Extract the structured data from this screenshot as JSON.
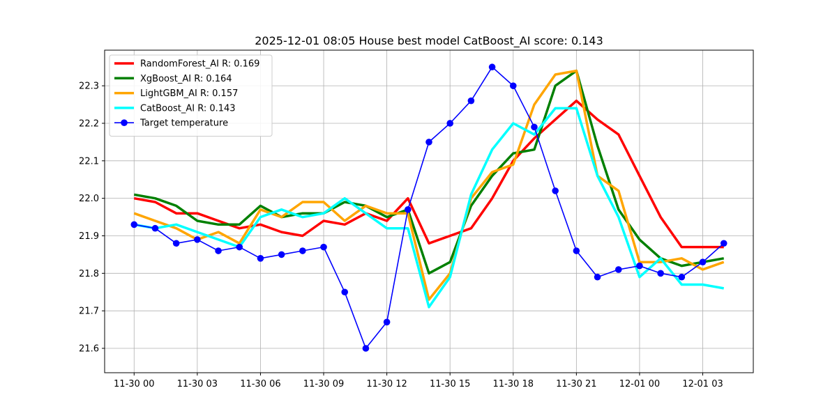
{
  "chart_data": {
    "type": "line",
    "title": "2025-12-01 08:05 House best model CatBoost_AI score: 0.143",
    "xlabel": "",
    "ylabel": "",
    "x": [
      "11-30 00",
      "11-30 01",
      "11-30 02",
      "11-30 03",
      "11-30 04",
      "11-30 05",
      "11-30 06",
      "11-30 07",
      "11-30 08",
      "11-30 09",
      "11-30 10",
      "11-30 11",
      "11-30 12",
      "11-30 13",
      "11-30 14",
      "11-30 15",
      "11-30 16",
      "11-30 17",
      "11-30 18",
      "11-30 19",
      "11-30 20",
      "11-30 21",
      "11-30 22",
      "11-30 23",
      "12-01 00",
      "12-01 01",
      "12-01 02",
      "12-01 03",
      "12-01 04"
    ],
    "x_hours": [
      0,
      1,
      2,
      3,
      4,
      5,
      6,
      7,
      8,
      9,
      10,
      11,
      12,
      13,
      14,
      15,
      16,
      17,
      18,
      19,
      20,
      21,
      22,
      23,
      24,
      25,
      26,
      27,
      28
    ],
    "xlim_hours": [
      -1.4,
      29.4
    ],
    "ylim": [
      21.535,
      22.395
    ],
    "x_ticks": [
      {
        "hour": 0,
        "label": "11-30 00"
      },
      {
        "hour": 3,
        "label": "11-30 03"
      },
      {
        "hour": 6,
        "label": "11-30 06"
      },
      {
        "hour": 9,
        "label": "11-30 09"
      },
      {
        "hour": 12,
        "label": "11-30 12"
      },
      {
        "hour": 15,
        "label": "11-30 15"
      },
      {
        "hour": 18,
        "label": "11-30 18"
      },
      {
        "hour": 21,
        "label": "11-30 21"
      },
      {
        "hour": 24,
        "label": "12-01 00"
      },
      {
        "hour": 27,
        "label": "12-01 03"
      }
    ],
    "y_ticks": [
      {
        "value": 21.6,
        "label": "21.6"
      },
      {
        "value": 21.7,
        "label": "21.7"
      },
      {
        "value": 21.8,
        "label": "21.8"
      },
      {
        "value": 21.9,
        "label": "21.9"
      },
      {
        "value": 22.0,
        "label": "22.0"
      },
      {
        "value": 22.1,
        "label": "22.1"
      },
      {
        "value": 22.2,
        "label": "22.2"
      },
      {
        "value": 22.3,
        "label": "22.3"
      }
    ],
    "grid": true,
    "legend_position": "top-left",
    "series": [
      {
        "name": "RandomForest_AI R: 0.169",
        "color": "#ff0000",
        "marker": false,
        "values": [
          22.0,
          21.99,
          21.96,
          21.96,
          21.94,
          21.92,
          21.93,
          21.91,
          21.9,
          21.94,
          21.93,
          21.96,
          21.94,
          22.0,
          21.88,
          21.9,
          21.92,
          22.0,
          22.1,
          22.16,
          22.21,
          22.26,
          22.21,
          22.17,
          22.06,
          21.95,
          21.87,
          21.87,
          21.87
        ]
      },
      {
        "name": "XgBoost_AI R: 0.164",
        "color": "#008000",
        "marker": false,
        "values": [
          22.01,
          22.0,
          21.98,
          21.94,
          21.93,
          21.93,
          21.98,
          21.95,
          21.96,
          21.96,
          21.99,
          21.98,
          21.95,
          21.97,
          21.8,
          21.83,
          21.98,
          22.06,
          22.12,
          22.13,
          22.3,
          22.34,
          22.14,
          21.97,
          21.89,
          21.84,
          21.82,
          21.83,
          21.84
        ]
      },
      {
        "name": "LightGBM_AI R: 0.157",
        "color": "#ffa500",
        "marker": false,
        "values": [
          21.96,
          21.94,
          21.92,
          21.89,
          21.91,
          21.88,
          21.97,
          21.95,
          21.99,
          21.99,
          21.94,
          21.98,
          21.96,
          21.96,
          21.73,
          21.8,
          22.0,
          22.07,
          22.09,
          22.25,
          22.33,
          22.34,
          22.06,
          22.02,
          21.83,
          21.83,
          21.84,
          21.81,
          21.83
        ]
      },
      {
        "name": "CatBoost_AI R: 0.143",
        "color": "#00ffff",
        "marker": false,
        "values": [
          21.93,
          21.92,
          21.93,
          21.91,
          21.89,
          21.87,
          21.95,
          21.97,
          21.95,
          21.96,
          22.0,
          21.96,
          21.92,
          21.92,
          21.71,
          21.79,
          22.01,
          22.13,
          22.2,
          22.17,
          22.24,
          22.24,
          22.06,
          21.95,
          21.79,
          21.84,
          21.77,
          21.77,
          21.76
        ]
      },
      {
        "name": "Target temperature",
        "color": "#0000ff",
        "marker": true,
        "values": [
          21.93,
          21.92,
          21.88,
          21.89,
          21.86,
          21.87,
          21.84,
          21.85,
          21.86,
          21.87,
          21.75,
          21.6,
          21.67,
          21.97,
          22.15,
          22.2,
          22.26,
          22.35,
          22.3,
          22.19,
          22.02,
          21.86,
          21.79,
          21.81,
          21.82,
          21.8,
          21.79,
          21.83,
          21.88
        ]
      }
    ]
  }
}
